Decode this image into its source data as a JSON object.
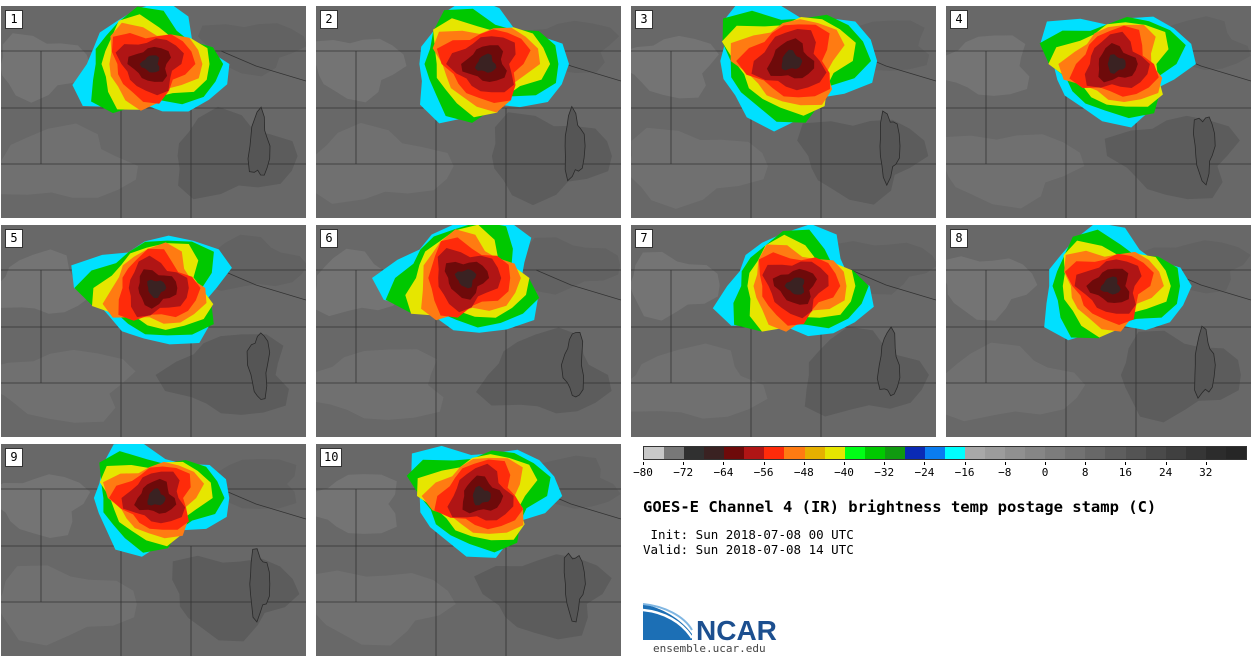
{
  "panels": [
    "1",
    "2",
    "3",
    "4",
    "5",
    "6",
    "7",
    "8",
    "9",
    "10"
  ],
  "colorbar": {
    "colors": [
      "#c8c8c8",
      "#787878",
      "#303030",
      "#3a2222",
      "#6e0a0a",
      "#b01515",
      "#ff2b0a",
      "#ff7b12",
      "#e6b000",
      "#e6e600",
      "#00ff16",
      "#00c800",
      "#109a10",
      "#0a2ab5",
      "#0a7cf0",
      "#00ffff",
      "#a8a8a8",
      "#9c9c9c",
      "#909090",
      "#868686",
      "#7c7c7c",
      "#727272",
      "#686868",
      "#5e5e5e",
      "#545454",
      "#4a4a4a",
      "#404040",
      "#363636",
      "#2c2c2c",
      "#262626"
    ],
    "ticks": [
      "−80",
      "−72",
      "−64",
      "−56",
      "−48",
      "−40",
      "−32",
      "−24",
      "−16",
      "−8",
      "0",
      "8",
      "16",
      "24",
      "32"
    ]
  },
  "title": "GOES-E Channel 4 (IR) brightness temp postage stamp (C)",
  "init_line": " Init: Sun 2018-07-08 00 UTC",
  "valid_line": "Valid: Sun 2018-07-08 14 UTC",
  "logo_text": "NCAR",
  "logo_url": "ensemble.ucar.edu"
}
